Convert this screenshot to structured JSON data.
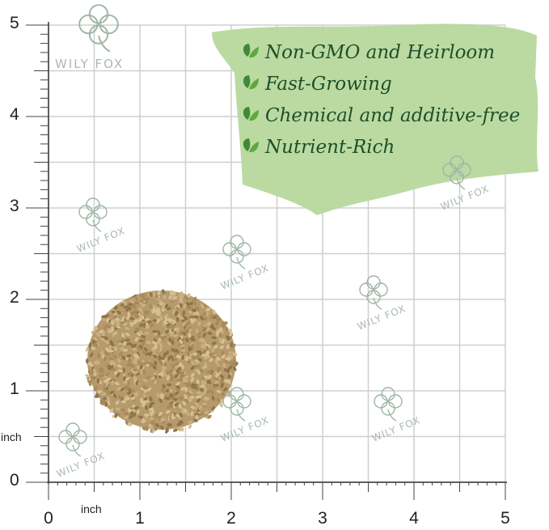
{
  "brand": "WILY FOX",
  "features": [
    "Non-GMO and Heirloom",
    "Fast-Growing",
    "Chemical and additive-free",
    "Nutrient-Rich"
  ],
  "ruler": {
    "vertical_labels": [
      "0",
      "1",
      "2",
      "3",
      "4",
      "5"
    ],
    "horizontal_labels": [
      "0",
      "1",
      "2",
      "3",
      "4",
      "5"
    ],
    "unit_label": "inch"
  }
}
